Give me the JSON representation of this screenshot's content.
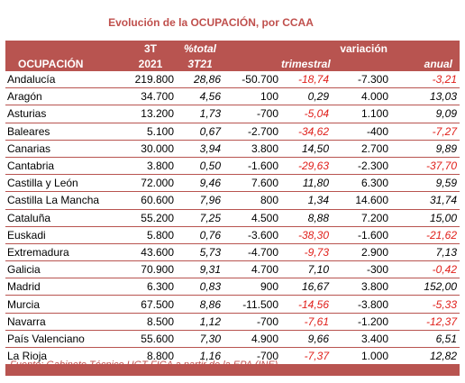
{
  "title": "Evolución de la OCUPACIÓN, por CCAA",
  "header": {
    "row1": {
      "col_3t": "3T",
      "col_pct": "%total",
      "col_var": "variación"
    },
    "row2": {
      "ocupacion": "OCUPACIÓN",
      "col_2021": "2021",
      "col_3t21": "3T21",
      "trimestral": "trimestral",
      "anual": "anual"
    }
  },
  "rows": [
    {
      "name": "Andalucía",
      "v2021": "219.800",
      "pct": "28,86",
      "tri_abs": "-50.700",
      "tri_pct": "-18,74",
      "anu_abs": "-7.300",
      "anu_pct": "-3,21"
    },
    {
      "name": "Aragón",
      "v2021": "34.700",
      "pct": "4,56",
      "tri_abs": "100",
      "tri_pct": "0,29",
      "anu_abs": "4.000",
      "anu_pct": "13,03"
    },
    {
      "name": "Asturias",
      "v2021": "13.200",
      "pct": "1,73",
      "tri_abs": "-700",
      "tri_pct": "-5,04",
      "anu_abs": "1.100",
      "anu_pct": "9,09"
    },
    {
      "name": "Baleares",
      "v2021": "5.100",
      "pct": "0,67",
      "tri_abs": "-2.700",
      "tri_pct": "-34,62",
      "anu_abs": "-400",
      "anu_pct": "-7,27"
    },
    {
      "name": "Canarias",
      "v2021": "30.000",
      "pct": "3,94",
      "tri_abs": "3.800",
      "tri_pct": "14,50",
      "anu_abs": "2.700",
      "anu_pct": "9,89"
    },
    {
      "name": "Cantabria",
      "v2021": "3.800",
      "pct": "0,50",
      "tri_abs": "-1.600",
      "tri_pct": "-29,63",
      "anu_abs": "-2.300",
      "anu_pct": "-37,70"
    },
    {
      "name": "Castilla y León",
      "v2021": "72.000",
      "pct": "9,46",
      "tri_abs": "7.600",
      "tri_pct": "11,80",
      "anu_abs": "6.300",
      "anu_pct": "9,59"
    },
    {
      "name": "Castilla La Mancha",
      "v2021": "60.600",
      "pct": "7,96",
      "tri_abs": "800",
      "tri_pct": "1,34",
      "anu_abs": "14.600",
      "anu_pct": "31,74"
    },
    {
      "name": "Cataluña",
      "v2021": "55.200",
      "pct": "7,25",
      "tri_abs": "4.500",
      "tri_pct": "8,88",
      "anu_abs": "7.200",
      "anu_pct": "15,00"
    },
    {
      "name": "Euskadi",
      "v2021": "5.800",
      "pct": "0,76",
      "tri_abs": "-3.600",
      "tri_pct": "-38,30",
      "anu_abs": "-1.600",
      "anu_pct": "-21,62"
    },
    {
      "name": "Extremadura",
      "v2021": "43.600",
      "pct": "5,73",
      "tri_abs": "-4.700",
      "tri_pct": "-9,73",
      "anu_abs": "2.900",
      "anu_pct": "7,13"
    },
    {
      "name": "Galicia",
      "v2021": "70.900",
      "pct": "9,31",
      "tri_abs": "4.700",
      "tri_pct": "7,10",
      "anu_abs": "-300",
      "anu_pct": "-0,42"
    },
    {
      "name": "Madrid",
      "v2021": "6.300",
      "pct": "0,83",
      "tri_abs": "900",
      "tri_pct": "16,67",
      "anu_abs": "3.800",
      "anu_pct": "152,00"
    },
    {
      "name": "Murcia",
      "v2021": "67.500",
      "pct": "8,86",
      "tri_abs": "-11.500",
      "tri_pct": "-14,56",
      "anu_abs": "-3.800",
      "anu_pct": "-5,33"
    },
    {
      "name": "Navarra",
      "v2021": "8.500",
      "pct": "1,12",
      "tri_abs": "-700",
      "tri_pct": "-7,61",
      "anu_abs": "-1.200",
      "anu_pct": "-12,37"
    },
    {
      "name": "País Valenciano",
      "v2021": "55.600",
      "pct": "7,30",
      "tri_abs": "4.900",
      "tri_pct": "9,66",
      "anu_abs": "3.400",
      "anu_pct": "6,51"
    },
    {
      "name": "La Rioja",
      "v2021": "8.800",
      "pct": "1,16",
      "tri_abs": "-700",
      "tri_pct": "-7,37",
      "anu_abs": "1.000",
      "anu_pct": "12,82"
    }
  ],
  "source": "Fuente: Gabinete Técnico UGT FICA a partir de la EPA (INE)",
  "colors": {
    "header_bg": "#b85450",
    "title": "#c0504d",
    "negative": "#e0201b"
  }
}
